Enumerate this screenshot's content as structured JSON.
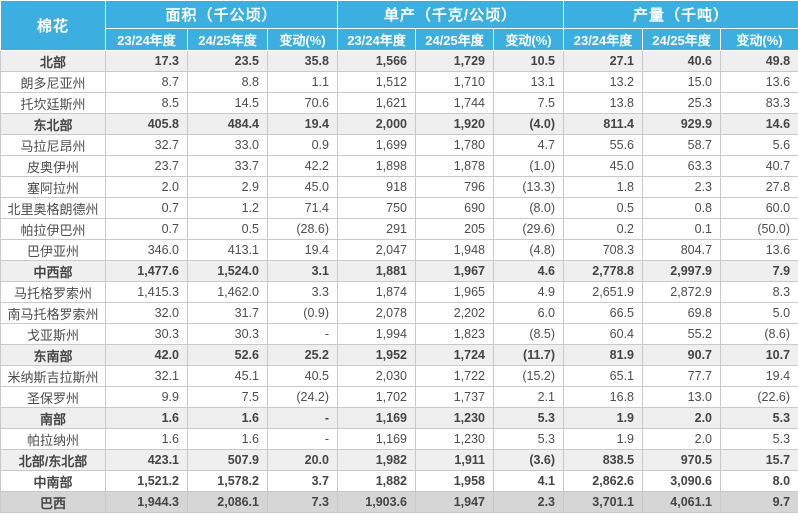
{
  "table": {
    "corner_label": "棉花",
    "groups": [
      {
        "label": "面积（千公顷）"
      },
      {
        "label": "单产（千克/公顷）"
      },
      {
        "label": "产量（千吨）"
      }
    ],
    "subheaders": [
      "23/24年度",
      "24/25年度",
      "变动(%)"
    ],
    "rows": [
      {
        "label": "北部",
        "type": "region",
        "values": [
          "17.3",
          "23.5",
          "35.8",
          "1,566",
          "1,729",
          "10.5",
          "27.1",
          "40.6",
          "49.8"
        ]
      },
      {
        "label": "朗多尼亚州",
        "type": "state",
        "values": [
          "8.7",
          "8.8",
          "1.1",
          "1,512",
          "1,710",
          "13.1",
          "13.2",
          "15.0",
          "13.6"
        ]
      },
      {
        "label": "托坎廷斯州",
        "type": "state",
        "values": [
          "8.5",
          "14.5",
          "70.6",
          "1,621",
          "1,744",
          "7.5",
          "13.8",
          "25.3",
          "83.3"
        ]
      },
      {
        "label": "东北部",
        "type": "region",
        "values": [
          "405.8",
          "484.4",
          "19.4",
          "2,000",
          "1,920",
          "(4.0)",
          "811.4",
          "929.9",
          "14.6"
        ]
      },
      {
        "label": "马拉尼昂州",
        "type": "state",
        "values": [
          "32.7",
          "33.0",
          "0.9",
          "1,699",
          "1,780",
          "4.7",
          "55.6",
          "58.7",
          "5.6"
        ]
      },
      {
        "label": "皮奥伊州",
        "type": "state",
        "values": [
          "23.7",
          "33.7",
          "42.2",
          "1,898",
          "1,878",
          "(1.0)",
          "45.0",
          "63.3",
          "40.7"
        ]
      },
      {
        "label": "塞阿拉州",
        "type": "state",
        "values": [
          "2.0",
          "2.9",
          "45.0",
          "918",
          "796",
          "(13.3)",
          "1.8",
          "2.3",
          "27.8"
        ]
      },
      {
        "label": "北里奥格朗德州",
        "type": "state",
        "values": [
          "0.7",
          "1.2",
          "71.4",
          "750",
          "690",
          "(8.0)",
          "0.5",
          "0.8",
          "60.0"
        ]
      },
      {
        "label": "帕拉伊巴州",
        "type": "state",
        "values": [
          "0.7",
          "0.5",
          "(28.6)",
          "291",
          "205",
          "(29.6)",
          "0.2",
          "0.1",
          "(50.0)"
        ]
      },
      {
        "label": "巴伊亚州",
        "type": "state",
        "values": [
          "346.0",
          "413.1",
          "19.4",
          "2,047",
          "1,948",
          "(4.8)",
          "708.3",
          "804.7",
          "13.6"
        ]
      },
      {
        "label": "中西部",
        "type": "region",
        "values": [
          "1,477.6",
          "1,524.0",
          "3.1",
          "1,881",
          "1,967",
          "4.6",
          "2,778.8",
          "2,997.9",
          "7.9"
        ]
      },
      {
        "label": "马托格罗索州",
        "type": "state",
        "values": [
          "1,415.3",
          "1,462.0",
          "3.3",
          "1,874",
          "1,965",
          "4.9",
          "2,651.9",
          "2,872.9",
          "8.3"
        ]
      },
      {
        "label": "南马托格罗索州",
        "type": "state",
        "values": [
          "32.0",
          "31.7",
          "(0.9)",
          "2,078",
          "2,202",
          "6.0",
          "66.5",
          "69.8",
          "5.0"
        ]
      },
      {
        "label": "戈亚斯州",
        "type": "state",
        "values": [
          "30.3",
          "30.3",
          "-",
          "1,994",
          "1,823",
          "(8.5)",
          "60.4",
          "55.2",
          "(8.6)"
        ]
      },
      {
        "label": "东南部",
        "type": "region",
        "values": [
          "42.0",
          "52.6",
          "25.2",
          "1,952",
          "1,724",
          "(11.7)",
          "81.9",
          "90.7",
          "10.7"
        ]
      },
      {
        "label": "米纳斯吉拉斯州",
        "type": "state",
        "values": [
          "32.1",
          "45.1",
          "40.5",
          "2,030",
          "1,722",
          "(15.2)",
          "65.1",
          "77.7",
          "19.4"
        ]
      },
      {
        "label": "圣保罗州",
        "type": "state",
        "values": [
          "9.9",
          "7.5",
          "(24.2)",
          "1,702",
          "1,737",
          "2.1",
          "16.8",
          "13.0",
          "(22.6)"
        ]
      },
      {
        "label": "南部",
        "type": "region",
        "values": [
          "1.6",
          "1.6",
          "-",
          "1,169",
          "1,230",
          "5.3",
          "1.9",
          "2.0",
          "5.3"
        ]
      },
      {
        "label": "帕拉纳州",
        "type": "state",
        "values": [
          "1.6",
          "1.6",
          "-",
          "1,169",
          "1,230",
          "5.3",
          "1.9",
          "2.0",
          "5.3"
        ]
      },
      {
        "label": "北部/东北部",
        "type": "region",
        "values": [
          "423.1",
          "507.9",
          "20.0",
          "1,982",
          "1,911",
          "(3.6)",
          "838.5",
          "970.5",
          "15.7"
        ]
      },
      {
        "label": "中南部",
        "type": "region-plain",
        "values": [
          "1,521.2",
          "1,578.2",
          "3.7",
          "1,882",
          "1,958",
          "4.1",
          "2,862.6",
          "3,090.6",
          "8.0"
        ]
      },
      {
        "label": "巴西",
        "type": "total",
        "values": [
          "1,944.3",
          "2,086.1",
          "7.3",
          "1,903.6",
          "1,947",
          "2.3",
          "3,701.1",
          "4,061.1",
          "9.7"
        ]
      }
    ]
  },
  "colors": {
    "header_bg": "#3BAFE0",
    "header_text": "#FFFFFF",
    "region_row_bg": "#EFEFEF",
    "total_row_bg": "#D6D6D6",
    "grid_border": "#C9C9C9",
    "text": "#4D4D4D"
  }
}
